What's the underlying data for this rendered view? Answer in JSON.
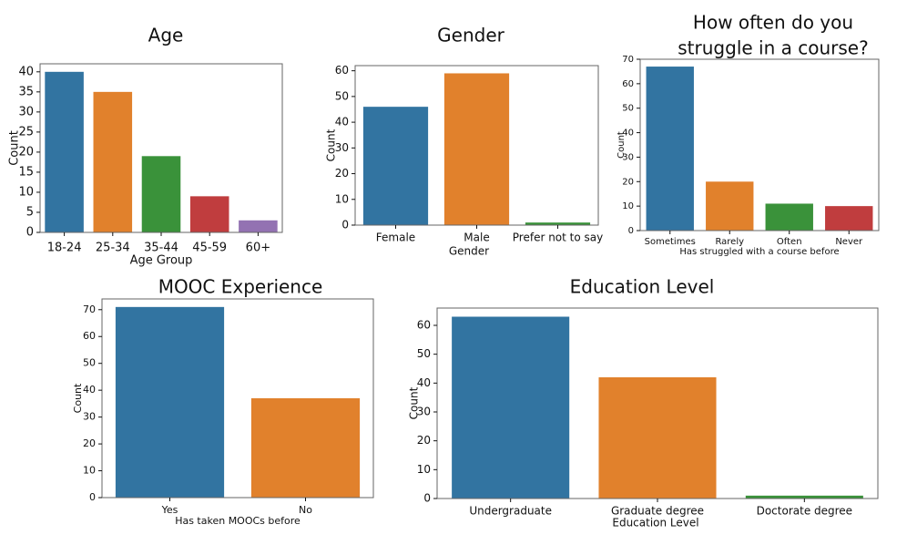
{
  "colors": [
    "#3274a1",
    "#e1812c",
    "#3a923a",
    "#c03d3e",
    "#9372b2"
  ],
  "chart_data": [
    {
      "id": "age",
      "type": "bar",
      "title": "Age",
      "xlabel": "Age Group",
      "ylabel": "Count",
      "categories": [
        "18-24",
        "25-34",
        "35-44",
        "45-59",
        "60+"
      ],
      "values": [
        40,
        35,
        19,
        9,
        3
      ],
      "ylim": [
        0,
        42
      ],
      "yticks": [
        0,
        5,
        10,
        15,
        20,
        25,
        30,
        35,
        40
      ],
      "grid": false
    },
    {
      "id": "gender",
      "type": "bar",
      "title": "Gender",
      "xlabel": "Gender",
      "ylabel": "Count",
      "categories": [
        "Female",
        "Male",
        "Prefer not to say"
      ],
      "values": [
        46,
        59,
        1
      ],
      "ylim": [
        0,
        62
      ],
      "yticks": [
        0,
        10,
        20,
        30,
        40,
        50,
        60
      ],
      "grid": false
    },
    {
      "id": "struggle",
      "type": "bar",
      "title": "How often do you\nstruggle in a course?",
      "xlabel": "Has struggled with a course before",
      "ylabel": "Count",
      "categories": [
        "Sometimes",
        "Rarely",
        "Often",
        "Never"
      ],
      "values": [
        67,
        20,
        11,
        10
      ],
      "ylim": [
        0,
        70
      ],
      "yticks": [
        0,
        10,
        20,
        30,
        40,
        50,
        60,
        70
      ],
      "grid": false
    },
    {
      "id": "mooc",
      "type": "bar",
      "title": "MOOC Experience",
      "xlabel": "Has taken MOOCs before",
      "ylabel": "Count",
      "categories": [
        "Yes",
        "No"
      ],
      "values": [
        71,
        37
      ],
      "ylim": [
        0,
        74
      ],
      "yticks": [
        0,
        10,
        20,
        30,
        40,
        50,
        60,
        70
      ],
      "grid": false
    },
    {
      "id": "education",
      "type": "bar",
      "title": "Education Level",
      "xlabel": "Education Level",
      "ylabel": "Count",
      "categories": [
        "Undergraduate",
        "Graduate degree",
        "Doctorate degree"
      ],
      "values": [
        63,
        42,
        1
      ],
      "ylim": [
        0,
        66
      ],
      "yticks": [
        0,
        10,
        20,
        30,
        40,
        50,
        60
      ],
      "grid": false
    }
  ]
}
